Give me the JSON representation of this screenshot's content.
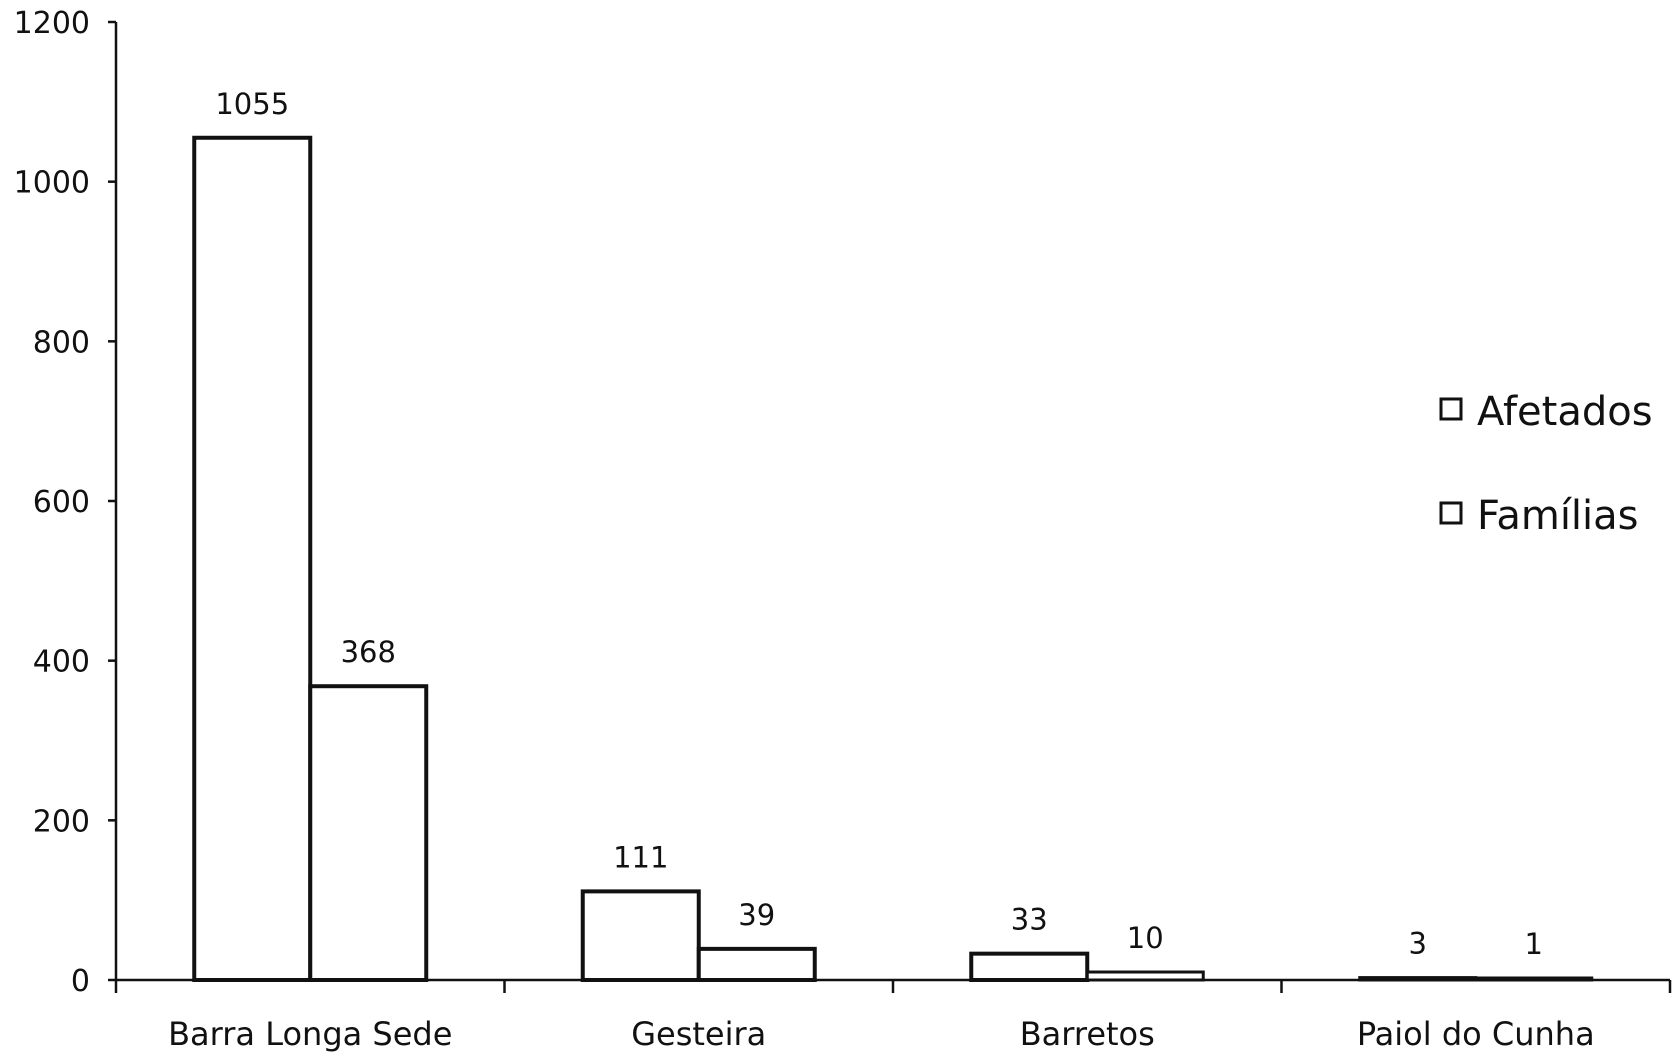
{
  "chart_data": {
    "type": "bar",
    "categories": [
      "Barra Longa Sede",
      "Gesteira",
      "Barretos",
      "Paiol do Cunha"
    ],
    "series": [
      {
        "name": "Afetados",
        "values": [
          1055,
          111,
          33,
          3
        ]
      },
      {
        "name": "Famílias",
        "values": [
          368,
          39,
          10,
          1
        ]
      }
    ],
    "data_labels": [
      [
        "1055",
        "111",
        "33",
        "3"
      ],
      [
        "368",
        "39",
        "10",
        "1"
      ]
    ],
    "title": "",
    "xlabel": "",
    "ylabel": "",
    "ylim": [
      0,
      1200
    ],
    "yticks": [
      0,
      200,
      400,
      600,
      800,
      1000,
      1200
    ],
    "ytick_labels": [
      "0",
      "200",
      "400",
      "600",
      "800",
      "1000",
      "1200"
    ],
    "grid": false,
    "legend_position": "right",
    "bar_fill": "#ffffff",
    "bar_stroke": "#111111"
  }
}
